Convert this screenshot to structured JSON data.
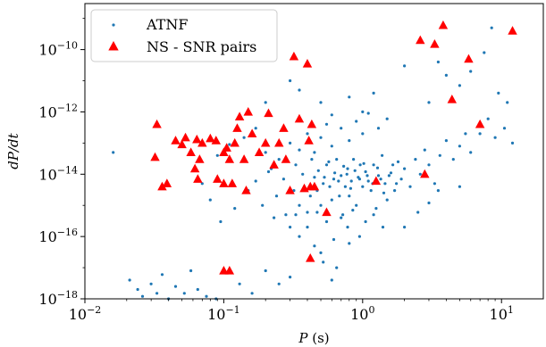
{
  "chart_data": {
    "type": "scatter",
    "xlabel": "P (s)",
    "ylabel": "dP/dt",
    "xscale": "log",
    "yscale": "log",
    "xlim": [
      0.01,
      20
    ],
    "ylim": [
      1e-18,
      3e-09
    ],
    "x_ticks": [
      {
        "value": 0.01,
        "base": "10",
        "exp": "−2"
      },
      {
        "value": 0.1,
        "base": "10",
        "exp": "−1"
      },
      {
        "value": 1,
        "base": "10",
        "exp": "0"
      },
      {
        "value": 10,
        "base": "10",
        "exp": "1"
      }
    ],
    "y_ticks": [
      {
        "value": 1e-18,
        "base": "10",
        "exp": "−18"
      },
      {
        "value": 1e-16,
        "base": "10",
        "exp": "−16"
      },
      {
        "value": 1e-14,
        "base": "10",
        "exp": "−14"
      },
      {
        "value": 1e-12,
        "base": "10",
        "exp": "−12"
      },
      {
        "value": 1e-10,
        "base": "10",
        "exp": "−10"
      }
    ],
    "grid": false,
    "legend": {
      "placement": "top-left"
    },
    "series": [
      {
        "name": "ATNF",
        "marker": "dot",
        "color": "#1f77b4",
        "points": [
          [
            0.016,
            5e-14
          ],
          [
            0.021,
            4e-18
          ],
          [
            0.024,
            2e-18
          ],
          [
            0.026,
            1.2e-18
          ],
          [
            0.03,
            3e-18
          ],
          [
            0.033,
            1.5e-18
          ],
          [
            0.036,
            6e-18
          ],
          [
            0.04,
            1e-18
          ],
          [
            0.045,
            2.5e-18
          ],
          [
            0.052,
            1.5e-18
          ],
          [
            0.058,
            8e-18
          ],
          [
            0.065,
            2e-18
          ],
          [
            0.075,
            1.2e-18
          ],
          [
            0.088,
            1e-18
          ],
          [
            0.1,
            9e-18
          ],
          [
            0.13,
            3e-18
          ],
          [
            0.16,
            1.5e-18
          ],
          [
            0.2,
            8e-18
          ],
          [
            0.25,
            3e-18
          ],
          [
            0.3,
            5e-18
          ],
          [
            0.19,
            1e-15
          ],
          [
            0.24,
            2e-15
          ],
          [
            0.28,
            5e-16
          ],
          [
            0.32,
            3e-15
          ],
          [
            0.35,
            1e-15
          ],
          [
            0.38,
            4e-15
          ],
          [
            0.4,
            6e-16
          ],
          [
            0.42,
            2e-15
          ],
          [
            0.45,
            8e-15
          ],
          [
            0.47,
            3e-15
          ],
          [
            0.5,
            1e-15
          ],
          [
            0.52,
            5e-15
          ],
          [
            0.55,
            2e-14
          ],
          [
            0.58,
            4e-15
          ],
          [
            0.6,
            1.5e-15
          ],
          [
            0.62,
            7e-15
          ],
          [
            0.65,
            3e-14
          ],
          [
            0.68,
            2e-15
          ],
          [
            0.7,
            9e-15
          ],
          [
            0.72,
            5e-16
          ],
          [
            0.75,
            4e-15
          ],
          [
            0.78,
            1.5e-14
          ],
          [
            0.8,
            2e-15
          ],
          [
            0.83,
            6e-15
          ],
          [
            0.86,
            3e-14
          ],
          [
            0.9,
            1e-15
          ],
          [
            0.93,
            8e-15
          ],
          [
            0.96,
            2e-14
          ],
          [
            1.0,
            4e-15
          ],
          [
            1.05,
            1.2e-14
          ],
          [
            1.1,
            6e-15
          ],
          [
            1.15,
            3e-15
          ],
          [
            1.2,
            2e-14
          ],
          [
            1.25,
            8e-16
          ],
          [
            1.3,
            9e-15
          ],
          [
            1.38,
            4e-14
          ],
          [
            1.45,
            5e-15
          ],
          [
            1.5,
            1.5e-15
          ],
          [
            1.6,
            1.1e-14
          ],
          [
            1.7,
            3e-15
          ],
          [
            1.8,
            2.5e-14
          ],
          [
            1.9,
            7e-15
          ],
          [
            2.0,
            1.5e-14
          ],
          [
            2.2,
            4e-15
          ],
          [
            2.4,
            3e-14
          ],
          [
            2.6,
            1e-14
          ],
          [
            2.8,
            6e-14
          ],
          [
            3.0,
            2e-14
          ],
          [
            3.3,
            5e-15
          ],
          [
            3.6,
            4e-14
          ],
          [
            4.0,
            1.2e-13
          ],
          [
            4.5,
            3e-14
          ],
          [
            5.0,
            8e-14
          ],
          [
            5.5,
            2e-13
          ],
          [
            6.0,
            5e-14
          ],
          [
            7.0,
            2e-13
          ],
          [
            8.0,
            6e-13
          ],
          [
            9.0,
            1.5e-13
          ],
          [
            10.5,
            3e-13
          ],
          [
            12.0,
            1e-13
          ],
          [
            0.25,
            3e-14
          ],
          [
            0.3,
            1e-13
          ],
          [
            0.35,
            6e-14
          ],
          [
            0.4,
            2e-13
          ],
          [
            0.45,
            5e-14
          ],
          [
            0.5,
            1.5e-13
          ],
          [
            0.55,
            4e-13
          ],
          [
            0.6,
            8e-14
          ],
          [
            0.7,
            3e-13
          ],
          [
            0.8,
            1.2e-13
          ],
          [
            0.9,
            5e-13
          ],
          [
            1.0,
            2e-13
          ],
          [
            1.1,
            9e-13
          ],
          [
            1.3,
            3e-13
          ],
          [
            1.5,
            6e-13
          ],
          [
            0.2,
            5e-14
          ],
          [
            0.22,
            1.5e-14
          ],
          [
            0.27,
            7e-15
          ],
          [
            0.33,
            2e-14
          ],
          [
            0.37,
            1e-14
          ],
          [
            0.43,
            3e-14
          ],
          [
            0.48,
            1.3e-14
          ],
          [
            0.53,
            8e-15
          ],
          [
            0.57,
            2.5e-14
          ],
          [
            0.63,
            1.1e-14
          ],
          [
            0.67,
            6e-15
          ],
          [
            0.73,
            1.8e-14
          ],
          [
            0.77,
            1e-14
          ],
          [
            0.82,
            3.5e-15
          ],
          [
            0.88,
            1.3e-14
          ],
          [
            0.95,
            7e-15
          ],
          [
            1.02,
            2.2e-14
          ],
          [
            1.08,
            9e-15
          ],
          [
            1.18,
            5e-15
          ],
          [
            1.28,
            1.6e-14
          ],
          [
            1.35,
            7e-15
          ],
          [
            1.42,
            2.5e-15
          ],
          [
            1.55,
            9e-15
          ],
          [
            1.65,
            2e-14
          ],
          [
            1.75,
            5e-15
          ],
          [
            0.33,
            5e-16
          ],
          [
            0.4,
            2e-16
          ],
          [
            0.47,
            6e-16
          ],
          [
            0.55,
            3e-16
          ],
          [
            0.62,
            8e-17
          ],
          [
            0.7,
            4e-16
          ],
          [
            0.78,
            2e-16
          ],
          [
            0.85,
            7e-16
          ],
          [
            0.95,
            1e-16
          ],
          [
            1.05,
            3e-16
          ],
          [
            1.2,
            5e-16
          ],
          [
            1.4,
            2e-16
          ],
          [
            0.45,
            5e-17
          ],
          [
            0.52,
            1.5e-17
          ],
          [
            0.6,
            4e-18
          ],
          [
            0.3,
            2e-16
          ],
          [
            0.35,
            1e-16
          ],
          [
            0.5,
            3e-17
          ],
          [
            0.65,
            1e-17
          ],
          [
            0.8,
            6e-17
          ],
          [
            2.0,
            2e-16
          ],
          [
            2.5,
            6e-16
          ],
          [
            3.0,
            1.2e-15
          ],
          [
            3.5,
            3e-15
          ],
          [
            5.0,
            4e-15
          ],
          [
            0.12,
            8e-16
          ],
          [
            0.15,
            3e-15
          ],
          [
            0.17,
            6e-15
          ],
          [
            0.21,
            1.2e-14
          ],
          [
            0.23,
            4e-16
          ],
          [
            0.09,
            4e-14
          ],
          [
            0.11,
            9e-14
          ],
          [
            0.14,
            1.5e-13
          ],
          [
            0.17,
            3e-13
          ],
          [
            0.2,
            2e-12
          ],
          [
            0.3,
            1e-11
          ],
          [
            0.35,
            5e-12
          ],
          [
            0.5,
            2e-12
          ],
          [
            0.6,
            8e-13
          ],
          [
            0.8,
            3e-12
          ],
          [
            1.0,
            1e-12
          ],
          [
            1.2,
            4e-12
          ],
          [
            2.0,
            3e-11
          ],
          [
            3.0,
            2e-12
          ],
          [
            3.5,
            4e-11
          ],
          [
            4.0,
            1.5e-11
          ],
          [
            5.0,
            7e-12
          ],
          [
            6.0,
            2e-11
          ],
          [
            7.5,
            8e-11
          ],
          [
            8.5,
            5e-10
          ],
          [
            9.5,
            4e-12
          ],
          [
            11.0,
            2e-12
          ],
          [
            0.07,
            5e-15
          ],
          [
            0.08,
            1.5e-15
          ],
          [
            0.095,
            3e-16
          ]
        ]
      },
      {
        "name": "NS - SNR pairs",
        "marker": "triangle",
        "color": "#ff0000",
        "points": [
          [
            0.033,
            4e-13
          ],
          [
            0.032,
            3.5e-14
          ],
          [
            0.036,
            4e-15
          ],
          [
            0.039,
            5e-15
          ],
          [
            0.045,
            1.2e-13
          ],
          [
            0.05,
            9e-14
          ],
          [
            0.053,
            1.5e-13
          ],
          [
            0.058,
            5e-14
          ],
          [
            0.064,
            1.3e-13
          ],
          [
            0.062,
            1.5e-14
          ],
          [
            0.065,
            7e-15
          ],
          [
            0.067,
            3e-14
          ],
          [
            0.07,
            1e-13
          ],
          [
            0.08,
            1.4e-13
          ],
          [
            0.088,
            1.2e-13
          ],
          [
            0.09,
            7e-15
          ],
          [
            0.1,
            5e-14
          ],
          [
            0.105,
            7e-14
          ],
          [
            0.11,
            3e-14
          ],
          [
            0.1,
            5e-15
          ],
          [
            0.115,
            5e-15
          ],
          [
            0.12,
            1e-13
          ],
          [
            0.125,
            3e-13
          ],
          [
            0.13,
            7e-13
          ],
          [
            0.14,
            3e-14
          ],
          [
            0.145,
            3e-15
          ],
          [
            0.15,
            1e-12
          ],
          [
            0.16,
            2e-13
          ],
          [
            0.18,
            5e-14
          ],
          [
            0.2,
            1e-13
          ],
          [
            0.21,
            9e-13
          ],
          [
            0.23,
            2e-14
          ],
          [
            0.25,
            1e-13
          ],
          [
            0.27,
            3e-13
          ],
          [
            0.28,
            3e-14
          ],
          [
            0.3,
            3e-15
          ],
          [
            0.32,
            6e-11
          ],
          [
            0.35,
            6e-13
          ],
          [
            0.38,
            3.5e-15
          ],
          [
            0.4,
            3.5e-11
          ],
          [
            0.41,
            1.2e-13
          ],
          [
            0.42,
            4e-15
          ],
          [
            0.43,
            4e-13
          ],
          [
            0.45,
            4e-15
          ],
          [
            0.55,
            6e-16
          ],
          [
            0.42,
            2e-17
          ],
          [
            0.1,
            8e-18
          ],
          [
            0.11,
            8e-18
          ],
          [
            1.25,
            6e-15
          ],
          [
            2.8,
            1e-14
          ],
          [
            2.6,
            2e-10
          ],
          [
            3.3,
            1.5e-10
          ],
          [
            3.8,
            6e-10
          ],
          [
            4.4,
            2.5e-12
          ],
          [
            5.8,
            5e-11
          ],
          [
            7.0,
            4e-13
          ],
          [
            12.0,
            4e-10
          ]
        ]
      }
    ]
  }
}
